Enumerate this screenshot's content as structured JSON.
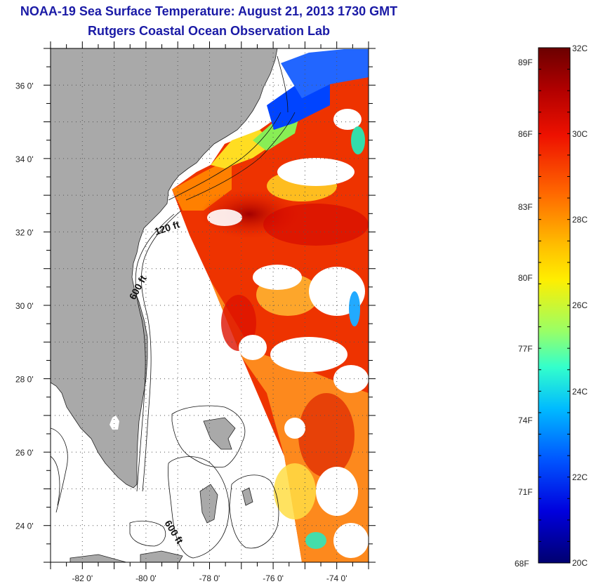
{
  "header": {
    "title": "NOAA-19 Sea Surface Temperature:  August 21, 2013 1730 GMT",
    "subtitle": "Rutgers Coastal Ocean Observation Lab"
  },
  "map": {
    "lat_labels": [
      "36 0'",
      "34 0'",
      "32 0'",
      "30 0'",
      "28 0'",
      "26 0'",
      "24 0'"
    ],
    "lon_labels": [
      "-82 0'",
      "-80 0'",
      "-78 0'",
      "-76 0'",
      "-74 0'"
    ],
    "contour_labels": [
      "120 ft",
      "600 ft",
      "600 ft"
    ],
    "lat_range": [
      23,
      37
    ],
    "lon_range": [
      -83,
      -73
    ]
  },
  "colorbar": {
    "fahrenheit": [
      "89F",
      "86F",
      "83F",
      "80F",
      "77F",
      "74F",
      "71F",
      "68F"
    ],
    "celsius": [
      "32C",
      "30C",
      "28C",
      "26C",
      "24C",
      "22C",
      "20C"
    ],
    "colors": [
      "#7f0000",
      "#cc0000",
      "#ff3300",
      "#ff9900",
      "#ffee00",
      "#aaff55",
      "#33ffcc",
      "#00bbff",
      "#0055ff",
      "#0000cc",
      "#000080"
    ]
  }
}
